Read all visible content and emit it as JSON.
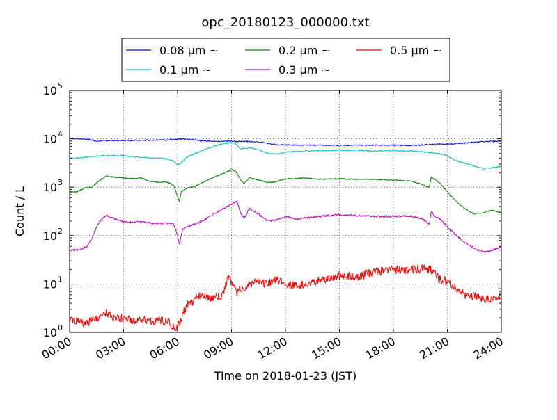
{
  "chart_data": {
    "type": "line",
    "title": "opc_20180123_000000.txt",
    "xlabel": "Time on 2018-01-23 (JST)",
    "ylabel": "Count / L",
    "xlim": [
      0,
      24
    ],
    "ylim": [
      1,
      100000
    ],
    "yscale": "log",
    "grid": true,
    "legend_position": "top-center, above plot",
    "x_ticks": [
      {
        "value": 0,
        "label": "00:00"
      },
      {
        "value": 3,
        "label": "03:00"
      },
      {
        "value": 6,
        "label": "06:00"
      },
      {
        "value": 9,
        "label": "09:00"
      },
      {
        "value": 12,
        "label": "12:00"
      },
      {
        "value": 15,
        "label": "15:00"
      },
      {
        "value": 18,
        "label": "18:00"
      },
      {
        "value": 21,
        "label": "21:00"
      },
      {
        "value": 24,
        "label": "24:00"
      }
    ],
    "y_ticks": [
      {
        "value": 1,
        "base": "10",
        "exp": "0"
      },
      {
        "value": 10,
        "base": "10",
        "exp": "1"
      },
      {
        "value": 100,
        "base": "10",
        "exp": "2"
      },
      {
        "value": 1000,
        "base": "10",
        "exp": "3"
      },
      {
        "value": 10000,
        "base": "10",
        "exp": "4"
      },
      {
        "value": 100000,
        "base": "10",
        "exp": "5"
      }
    ],
    "series": [
      {
        "name": "0.08 μm ~",
        "color": "#0000ff",
        "x": [
          0,
          0.5,
          1,
          1.5,
          2,
          3,
          4,
          5,
          5.5,
          6,
          6.5,
          7,
          7.5,
          8,
          8.5,
          9,
          9.5,
          10,
          10.5,
          11,
          11.5,
          12,
          13,
          14,
          15,
          16,
          17,
          18,
          19,
          20,
          20.5,
          21,
          22,
          23,
          24
        ],
        "y": [
          10000,
          10000,
          9800,
          9000,
          9200,
          9200,
          9300,
          9400,
          9500,
          9800,
          9800,
          9400,
          9000,
          8900,
          8900,
          9000,
          8800,
          8800,
          8500,
          8200,
          7500,
          7500,
          7400,
          7400,
          7300,
          7400,
          7400,
          7400,
          7300,
          7600,
          7800,
          7800,
          8200,
          8700,
          9000
        ]
      },
      {
        "name": "0.1 μm ~",
        "color": "#00bfbf",
        "x": [
          0,
          0.5,
          1,
          1.5,
          2,
          3,
          4,
          5,
          5.5,
          5.8,
          6,
          6.2,
          6.5,
          7,
          7.5,
          8,
          8.5,
          9,
          9.3,
          9.5,
          10,
          10.5,
          11,
          11.5,
          12,
          13,
          14,
          15,
          16,
          17,
          18,
          19,
          20,
          20.5,
          21,
          21.5,
          22,
          23,
          24
        ],
        "y": [
          3900,
          4000,
          4200,
          4400,
          4500,
          4500,
          4100,
          4000,
          3800,
          3400,
          2800,
          3200,
          4200,
          5000,
          6000,
          7000,
          7800,
          8500,
          7500,
          6200,
          6500,
          6000,
          5000,
          4800,
          5300,
          5600,
          5700,
          5800,
          5800,
          5600,
          5700,
          5600,
          5200,
          5000,
          4400,
          3500,
          3100,
          2400,
          2700
        ]
      },
      {
        "name": "0.2 μm ~",
        "color": "#008000",
        "x": [
          0,
          0.4,
          0.8,
          1.2,
          1.6,
          2,
          2.5,
          3,
          3.5,
          4,
          4.5,
          5,
          5.5,
          5.8,
          6,
          6.1,
          6.2,
          6.5,
          7,
          7.5,
          8,
          8.5,
          9,
          9.3,
          9.5,
          9.7,
          10,
          10.5,
          11,
          11.5,
          12,
          12.5,
          13,
          13.5,
          14,
          15,
          16,
          17,
          18,
          19,
          20,
          20.1,
          20.3,
          20.6,
          21,
          21.5,
          22,
          22.5,
          23,
          23.5,
          24
        ],
        "y": [
          800,
          800,
          950,
          1000,
          1300,
          1700,
          1600,
          1550,
          1500,
          1550,
          1300,
          1280,
          1250,
          1050,
          650,
          500,
          800,
          950,
          1050,
          1300,
          1600,
          1900,
          2300,
          2000,
          1400,
          1200,
          1550,
          1400,
          1250,
          1300,
          1500,
          1500,
          1550,
          1500,
          1450,
          1500,
          1450,
          1450,
          1400,
          1350,
          1000,
          1600,
          1450,
          1200,
          800,
          500,
          350,
          280,
          300,
          330,
          300
        ]
      },
      {
        "name": "0.3 μm ~",
        "color": "#bf00bf",
        "x": [
          0,
          0.5,
          1,
          1.3,
          1.6,
          2,
          2.5,
          3,
          3.5,
          4,
          4.5,
          5,
          5.5,
          5.8,
          6,
          6.1,
          6.3,
          6.5,
          7,
          7.5,
          8,
          8.5,
          9,
          9.3,
          9.5,
          9.7,
          10,
          10.5,
          11,
          11.5,
          12,
          12.5,
          13,
          13.5,
          14,
          15,
          16,
          17,
          18,
          19,
          19.5,
          19.8,
          20,
          20.1,
          20.3,
          20.6,
          21,
          21.5,
          22,
          22.5,
          23,
          23.5,
          24
        ],
        "y": [
          50,
          50,
          60,
          100,
          180,
          260,
          220,
          195,
          190,
          190,
          180,
          180,
          180,
          170,
          100,
          65,
          140,
          150,
          175,
          210,
          280,
          350,
          450,
          500,
          300,
          230,
          360,
          280,
          200,
          210,
          250,
          220,
          230,
          240,
          250,
          270,
          260,
          250,
          250,
          250,
          230,
          200,
          170,
          320,
          250,
          220,
          150,
          100,
          70,
          55,
          45,
          50,
          60
        ]
      },
      {
        "name": "0.5 μm ~",
        "color": "#ff0000",
        "x": [
          0,
          0.5,
          1,
          1.5,
          2,
          2.5,
          3,
          3.5,
          4,
          4.5,
          5,
          5.5,
          5.8,
          6,
          6.2,
          6.5,
          6.8,
          7,
          7.5,
          8,
          8.5,
          8.8,
          9,
          9.3,
          9.5,
          10,
          10.5,
          11,
          11.5,
          12,
          12.5,
          13,
          14,
          15,
          16,
          17,
          18,
          18.5,
          19,
          19.5,
          20,
          20.2,
          20.5,
          21,
          21.5,
          22,
          22.5,
          23,
          23.5,
          24
        ],
        "y": [
          2,
          1.6,
          1.6,
          2,
          2.5,
          2,
          2,
          1.8,
          1.8,
          1.7,
          1.8,
          1.6,
          1.3,
          1.2,
          2,
          3.5,
          4,
          5.5,
          5.5,
          5,
          6,
          14,
          11,
          7,
          8,
          10,
          11,
          10,
          13,
          10,
          9.5,
          10,
          12,
          15,
          14,
          18,
          20,
          19,
          20,
          21,
          20,
          18,
          13,
          11,
          8,
          6,
          5.5,
          5,
          4.5,
          6
        ]
      }
    ]
  }
}
